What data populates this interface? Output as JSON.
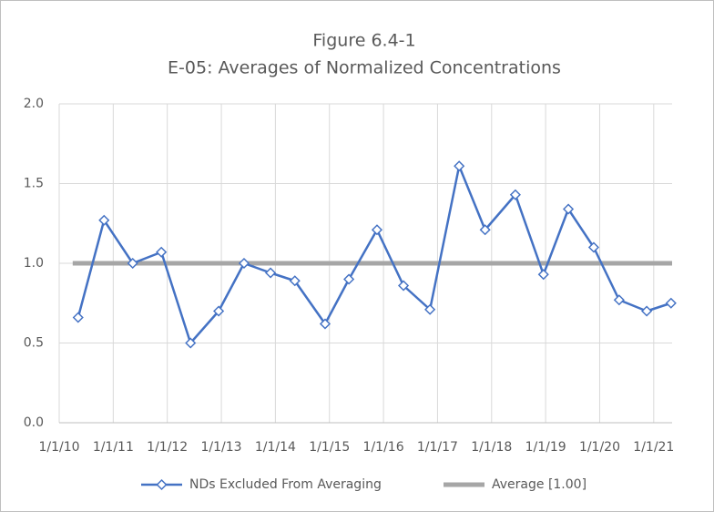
{
  "chart_data": {
    "type": "line",
    "title": "Figure 6.4-1",
    "subtitle": "E-05: Averages of Normalized Concentrations",
    "xlim": [
      2010,
      2021.34
    ],
    "ylim": [
      0,
      2
    ],
    "xticks": [
      {
        "value": 2010,
        "label": "1/1/10"
      },
      {
        "value": 2011,
        "label": "1/1/11"
      },
      {
        "value": 2012,
        "label": "1/1/12"
      },
      {
        "value": 2013,
        "label": "1/1/13"
      },
      {
        "value": 2014,
        "label": "1/1/14"
      },
      {
        "value": 2015,
        "label": "1/1/15"
      },
      {
        "value": 2016,
        "label": "1/1/16"
      },
      {
        "value": 2017,
        "label": "1/1/17"
      },
      {
        "value": 2018,
        "label": "1/1/18"
      },
      {
        "value": 2019,
        "label": "1/1/19"
      },
      {
        "value": 2020,
        "label": "1/1/20"
      },
      {
        "value": 2021,
        "label": "1/1/21"
      }
    ],
    "yticks": [
      {
        "value": 0,
        "label": "0.0"
      },
      {
        "value": 0.5,
        "label": "0.5"
      },
      {
        "value": 1,
        "label": "1.0"
      },
      {
        "value": 1.5,
        "label": "1.5"
      },
      {
        "value": 2,
        "label": "2.0"
      }
    ],
    "grid": true,
    "legend": "bottom",
    "series": [
      {
        "name": "NDs Excluded From Averaging",
        "color": "#4472c4",
        "marker": "diamond",
        "x": [
          2010.35,
          2010.83,
          2011.36,
          2011.89,
          2012.43,
          2012.95,
          2013.42,
          2013.91,
          2014.36,
          2014.92,
          2015.36,
          2015.88,
          2016.37,
          2016.86,
          2017.4,
          2017.88,
          2018.44,
          2018.96,
          2019.42,
          2019.89,
          2020.36,
          2020.87,
          2021.32
        ],
        "values": [
          0.66,
          1.27,
          1.0,
          1.07,
          0.5,
          0.7,
          1.0,
          0.94,
          0.89,
          0.62,
          0.9,
          1.21,
          0.86,
          0.71,
          1.61,
          1.21,
          1.43,
          0.93,
          1.34,
          1.1,
          0.77,
          0.7,
          0.75
        ]
      },
      {
        "name": "Average [1.00]",
        "color": "#a6a6a6",
        "marker": "none",
        "x": [
          2010.25,
          2021.34
        ],
        "values": [
          1.0,
          1.0
        ]
      }
    ]
  }
}
